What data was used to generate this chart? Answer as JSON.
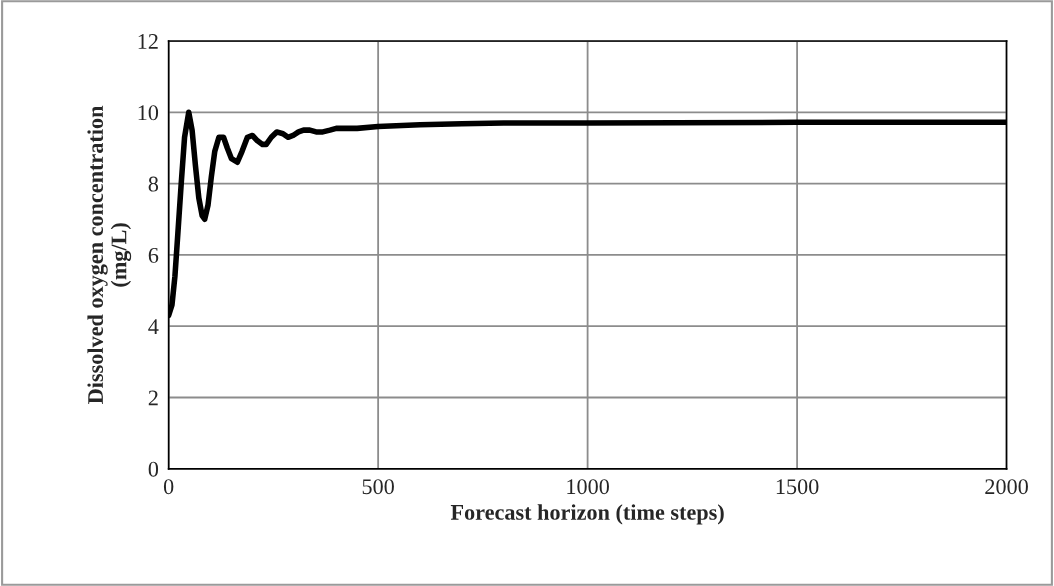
{
  "chart_data": {
    "type": "line",
    "xlabel": "Forecast horizon (time steps)",
    "ylabel": "Dissolved oxygen concentration\n(mg/L)",
    "xlim": [
      0,
      2000
    ],
    "ylim": [
      0,
      12
    ],
    "xticks": [
      0,
      500,
      1000,
      1500,
      2000
    ],
    "yticks": [
      0,
      2,
      4,
      6,
      8,
      10,
      12
    ],
    "grid": true,
    "marker": "none",
    "line_style": "solid",
    "series": [
      {
        "color": "#000000",
        "x": [
          0,
          8,
          15,
          22,
          30,
          38,
          48,
          56,
          64,
          72,
          80,
          86,
          94,
          102,
          110,
          120,
          131,
          140,
          150,
          164,
          175,
          188,
          200,
          212,
          224,
          233,
          245,
          258,
          273,
          285,
          297,
          310,
          322,
          337,
          352,
          368,
          385,
          400,
          450,
          500,
          600,
          700,
          800,
          1000,
          1500,
          2000
        ],
        "values": [
          4.3,
          4.6,
          5.4,
          6.6,
          8.0,
          9.3,
          10.0,
          9.5,
          8.5,
          7.6,
          7.1,
          7.0,
          7.4,
          8.2,
          8.9,
          9.3,
          9.3,
          9.0,
          8.7,
          8.6,
          8.9,
          9.3,
          9.35,
          9.2,
          9.1,
          9.1,
          9.3,
          9.45,
          9.4,
          9.3,
          9.35,
          9.45,
          9.5,
          9.5,
          9.45,
          9.45,
          9.5,
          9.55,
          9.55,
          9.6,
          9.65,
          9.68,
          9.7,
          9.7,
          9.72,
          9.72
        ]
      }
    ]
  }
}
